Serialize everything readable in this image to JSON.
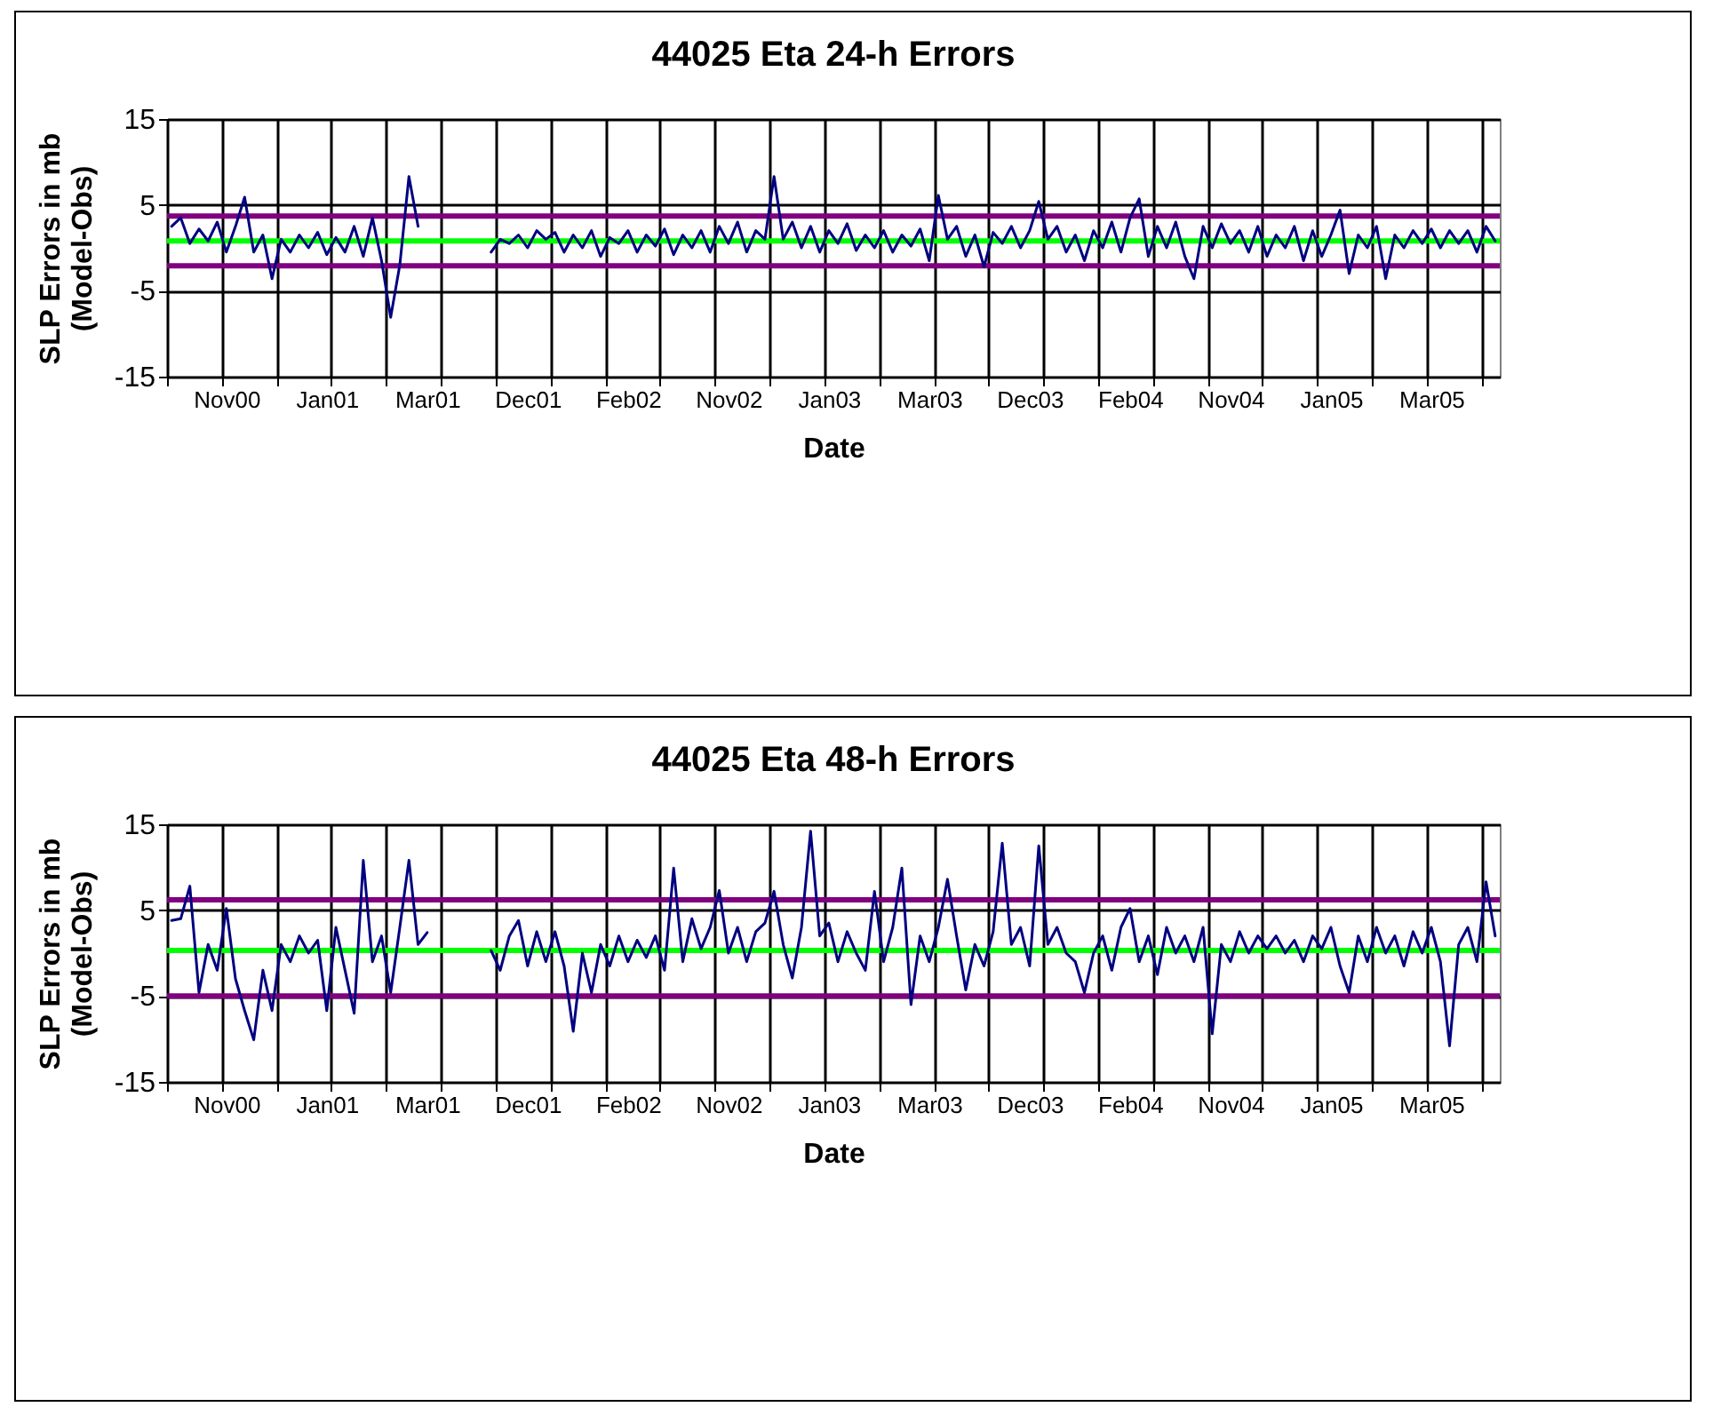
{
  "chart_data": [
    {
      "type": "line",
      "title": "44025 Eta 24-h Errors",
      "xlabel": "Date",
      "ylabel": "SLP Errors in mb\n(Model-Obs)",
      "grid": true,
      "ylim": [
        -15,
        15
      ],
      "yticks": [
        -15,
        -5,
        5,
        15
      ],
      "categories": [
        null,
        null,
        null,
        null,
        null,
        null,
        "Nov00",
        null,
        null,
        null,
        null,
        null,
        null,
        null,
        null,
        null,
        null,
        "Jan01",
        null,
        null,
        null,
        null,
        null,
        null,
        null,
        null,
        null,
        null,
        "Mar01",
        null,
        null,
        null,
        null,
        null,
        null,
        null,
        null,
        null,
        null,
        "Dec01",
        null,
        null,
        null,
        null,
        null,
        null,
        null,
        null,
        null,
        null,
        "Feb02",
        null,
        null,
        null,
        null,
        null,
        null,
        null,
        null,
        null,
        null,
        "Nov02",
        null,
        null,
        null,
        null,
        null,
        null,
        null,
        null,
        null,
        null,
        "Jan03",
        null,
        null,
        null,
        null,
        null,
        null,
        null,
        null,
        null,
        null,
        "Mar03",
        null,
        null,
        null,
        null,
        null,
        null,
        null,
        null,
        null,
        null,
        "Dec03",
        null,
        null,
        null,
        null,
        null,
        null,
        null,
        null,
        null,
        null,
        "Feb04",
        null,
        null,
        null,
        null,
        null,
        null,
        null,
        null,
        null,
        null,
        "Nov04",
        null,
        null,
        null,
        null,
        null,
        null,
        null,
        null,
        null,
        null,
        "Jan05",
        null,
        null,
        null,
        null,
        null,
        null,
        null,
        null,
        null,
        null,
        "Mar05",
        null,
        null,
        null,
        null,
        null,
        null,
        null
      ],
      "series": [
        {
          "color": "#000080",
          "values": [
            2.5,
            3.5,
            0.5,
            2.2,
            0.8,
            3,
            -0.5,
            2.5,
            5.9,
            -0.5,
            1.5,
            -3.6,
            1,
            -0.5,
            1.5,
            0,
            1.8,
            -0.8,
            1.2,
            -0.5,
            2.5,
            -1,
            3.5,
            -1.5,
            -8.1,
            -2,
            8.3,
            2.5,
            null,
            null,
            null,
            null,
            null,
            null,
            null,
            -0.5,
            1,
            0.5,
            1.5,
            0,
            2,
            1,
            1.8,
            -0.5,
            1.5,
            0,
            2,
            -1,
            1.2,
            0.5,
            2,
            -0.5,
            1.5,
            0.2,
            2.2,
            -0.8,
            1.5,
            0,
            2,
            -0.5,
            2.5,
            0.5,
            3,
            -0.5,
            2,
            1,
            8.3,
            1,
            3,
            0,
            2.5,
            -0.5,
            2,
            0.5,
            2.8,
            -0.3,
            1.5,
            0,
            2,
            -0.5,
            1.5,
            0.2,
            2.2,
            -1.5,
            6.1,
            1,
            2.5,
            -1,
            1.5,
            -2.2,
            1.8,
            0.5,
            2.5,
            0,
            2,
            5.4,
            1,
            2.5,
            -0.5,
            1.5,
            -1.5,
            2,
            0,
            3,
            -0.5,
            3.5,
            5.7,
            -1,
            2.5,
            0,
            3,
            -1,
            -3.6,
            2.5,
            0,
            2.8,
            0.5,
            2,
            -0.5,
            2.5,
            -1,
            1.5,
            0,
            2.5,
            -1.5,
            2,
            -1,
            1.5,
            4.4,
            -3,
            1.5,
            0,
            2.5,
            -3.6,
            1.5,
            0,
            2,
            0.5,
            2.2,
            0,
            2,
            0.5,
            2,
            -0.5,
            2.5,
            0.8
          ]
        }
      ],
      "ref_lines": [
        {
          "axis": "y",
          "value": 3.7,
          "color": "#800080"
        },
        {
          "axis": "y",
          "value": -2.1,
          "color": "#800080"
        },
        {
          "axis": "y",
          "value": 0.8,
          "color": "#00ff00"
        }
      ]
    },
    {
      "type": "line",
      "title": "44025 Eta 48-h Errors",
      "xlabel": "Date",
      "ylabel": "SLP Errors in mb\n(Model-Obs)",
      "grid": true,
      "ylim": [
        -15,
        15
      ],
      "yticks": [
        -15,
        -5,
        5,
        15
      ],
      "categories": [
        null,
        null,
        null,
        null,
        null,
        null,
        "Nov00",
        null,
        null,
        null,
        null,
        null,
        null,
        null,
        null,
        null,
        null,
        "Jan01",
        null,
        null,
        null,
        null,
        null,
        null,
        null,
        null,
        null,
        null,
        "Mar01",
        null,
        null,
        null,
        null,
        null,
        null,
        null,
        null,
        null,
        null,
        "Dec01",
        null,
        null,
        null,
        null,
        null,
        null,
        null,
        null,
        null,
        null,
        "Feb02",
        null,
        null,
        null,
        null,
        null,
        null,
        null,
        null,
        null,
        null,
        "Nov02",
        null,
        null,
        null,
        null,
        null,
        null,
        null,
        null,
        null,
        null,
        "Jan03",
        null,
        null,
        null,
        null,
        null,
        null,
        null,
        null,
        null,
        null,
        "Mar03",
        null,
        null,
        null,
        null,
        null,
        null,
        null,
        null,
        null,
        null,
        "Dec03",
        null,
        null,
        null,
        null,
        null,
        null,
        null,
        null,
        null,
        null,
        "Feb04",
        null,
        null,
        null,
        null,
        null,
        null,
        null,
        null,
        null,
        null,
        "Nov04",
        null,
        null,
        null,
        null,
        null,
        null,
        null,
        null,
        null,
        null,
        "Jan05",
        null,
        null,
        null,
        null,
        null,
        null,
        null,
        null,
        null,
        null,
        "Mar05",
        null,
        null,
        null,
        null,
        null,
        null,
        null
      ],
      "series": [
        {
          "color": "#000080",
          "values": [
            3.8,
            4,
            7.8,
            -4.6,
            1,
            -2,
            5.2,
            -3,
            -6.7,
            -10.1,
            -2,
            -6.7,
            1,
            -1,
            2,
            0,
            1.5,
            -6.7,
            3,
            -2,
            -7,
            10.8,
            -1,
            2,
            -4.6,
            3,
            10.8,
            1,
            2.4,
            null,
            null,
            null,
            null,
            null,
            null,
            0.3,
            -2,
            2,
            3.8,
            -1.5,
            2.5,
            -1,
            2.5,
            -1.5,
            -9.1,
            0,
            -4.6,
            1,
            -1.5,
            2,
            -1,
            1.5,
            -0.5,
            2,
            -2,
            9.9,
            -1,
            4,
            0.5,
            3,
            7.3,
            0,
            3,
            -1,
            2.5,
            3.5,
            7.2,
            1,
            -2.9,
            3,
            14.2,
            2,
            3.5,
            -1,
            2.5,
            0,
            -2,
            7.2,
            -1,
            3,
            9.9,
            -6,
            2,
            -1,
            3,
            8.6,
            2,
            -4.3,
            1,
            -1.5,
            2.5,
            12.8,
            1,
            3,
            -1.5,
            12.5,
            1,
            3,
            0,
            -1,
            -4.6,
            0,
            2,
            -2,
            3,
            5.2,
            -1,
            2,
            -2.5,
            3,
            0,
            2,
            -1,
            3,
            -9.4,
            1,
            -1,
            2.5,
            0,
            2,
            0.5,
            2,
            0,
            1.5,
            -1,
            2,
            0.5,
            3,
            -1.5,
            -4.6,
            2,
            -1,
            3,
            0,
            2,
            -1.5,
            2.5,
            0,
            3,
            -1,
            -10.8,
            1,
            3,
            -1,
            8.3,
            2
          ]
        }
      ],
      "ref_lines": [
        {
          "axis": "y",
          "value": 6.2,
          "color": "#800080"
        },
        {
          "axis": "y",
          "value": -5,
          "color": "#800080"
        },
        {
          "axis": "y",
          "value": 0.3,
          "color": "#00ff00"
        }
      ]
    }
  ]
}
